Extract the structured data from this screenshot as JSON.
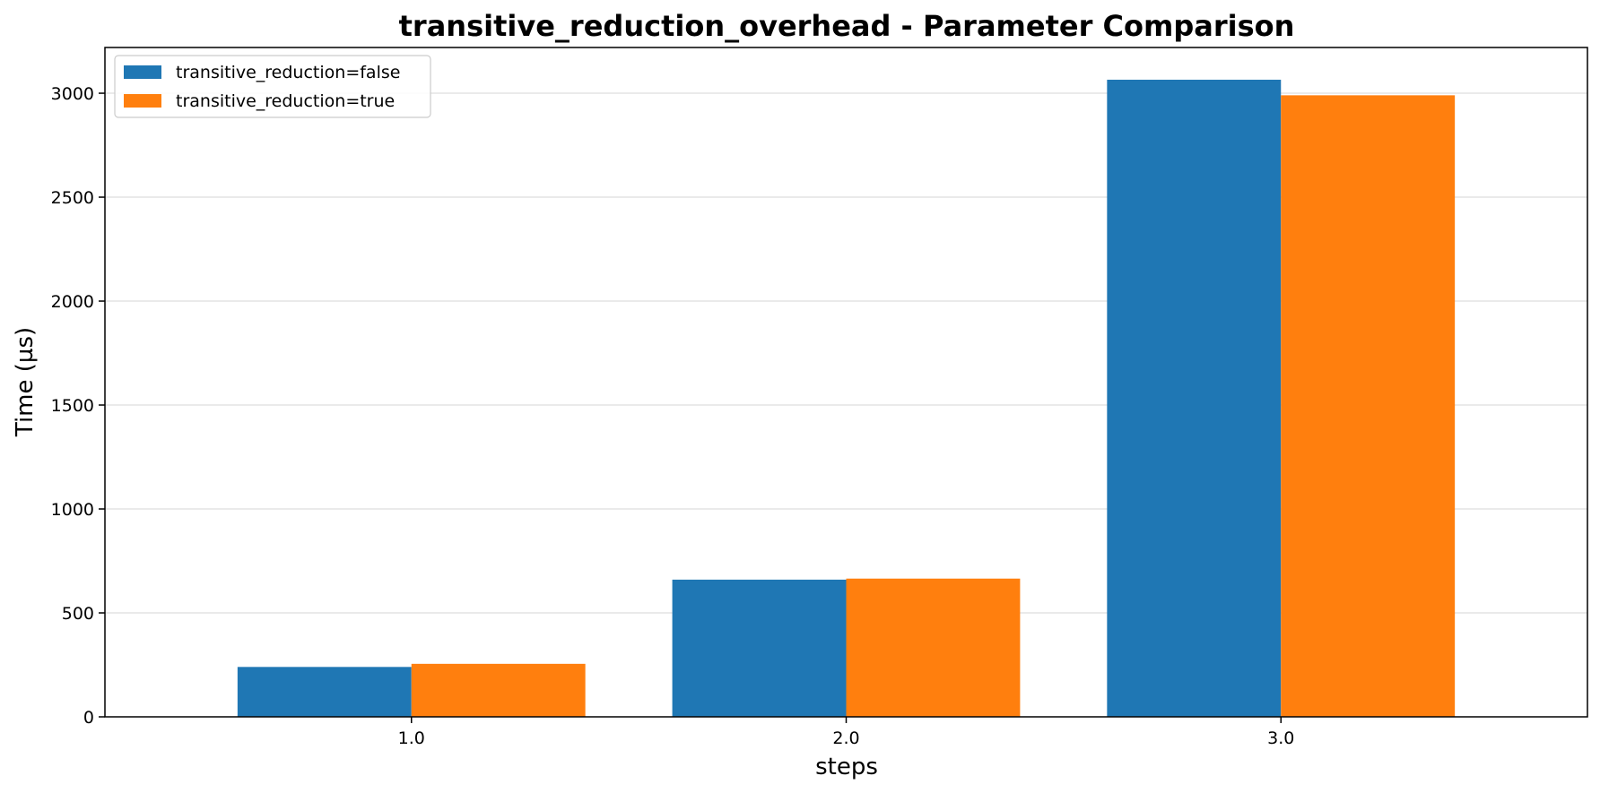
{
  "chart_data": {
    "type": "bar",
    "title": "transitive_reduction_overhead - Parameter Comparison",
    "xlabel": "steps",
    "ylabel": "Time (µs)",
    "categories": [
      "1.0",
      "2.0",
      "3.0"
    ],
    "series": [
      {
        "name": "transitive_reduction=false",
        "color": "#1f77b4",
        "values": [
          240,
          660,
          3065
        ]
      },
      {
        "name": "transitive_reduction=true",
        "color": "#ff7f0e",
        "values": [
          255,
          665,
          2990
        ]
      }
    ],
    "ylim": [
      0,
      3220
    ],
    "yticks": [
      0,
      500,
      1000,
      1500,
      2000,
      2500,
      3000
    ],
    "grid": "y",
    "legend": "top-left"
  }
}
